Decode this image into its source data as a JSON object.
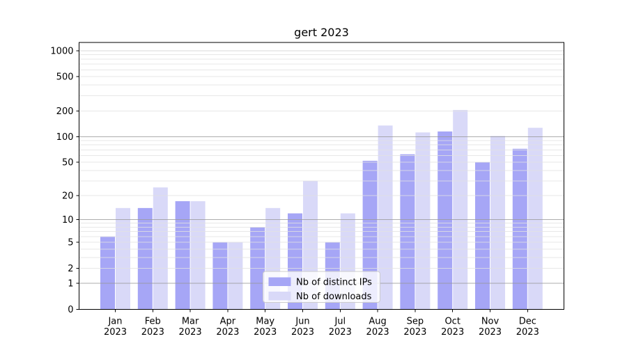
{
  "figure": {
    "background": "#ffffff"
  },
  "chart_data": {
    "type": "bar",
    "title": "gert 2023",
    "categories": [
      "Jan",
      "Feb",
      "Mar",
      "Apr",
      "May",
      "Jun",
      "Jul",
      "Aug",
      "Sep",
      "Oct",
      "Nov",
      "Dec"
    ],
    "year_label": "2023",
    "series": [
      {
        "name": "Nb of distinct IPs",
        "color": "#a6a6f6",
        "values": [
          6,
          14,
          17,
          5,
          8,
          12,
          5,
          52,
          62,
          115,
          50,
          72
        ]
      },
      {
        "name": "Nb of downloads",
        "color": "#d9d9f8",
        "values": [
          14,
          25,
          17,
          5,
          14,
          30,
          12,
          135,
          112,
          205,
          102,
          127
        ]
      }
    ],
    "yscale": "log1p",
    "ylim": [
      0,
      1250
    ],
    "yticks": [
      0,
      1,
      2,
      5,
      10,
      20,
      50,
      100,
      200,
      500,
      1000
    ],
    "ytick_labels": [
      "0",
      "1",
      "2",
      "5",
      "10",
      "20",
      "50",
      "100",
      "200",
      "500",
      "1000"
    ],
    "grid": true,
    "grid_major_at": [
      1,
      10,
      100
    ],
    "legend_position": "lower center"
  },
  "colors": {
    "grid_major": "#999999",
    "grid_semi": "#cfcfcf",
    "grid_minor": "#e2e2e2",
    "spine": "#000000",
    "tick": "#000000",
    "legend_border": "#cccccc",
    "legend_bg": "rgba(255,255,255,0.8)"
  }
}
